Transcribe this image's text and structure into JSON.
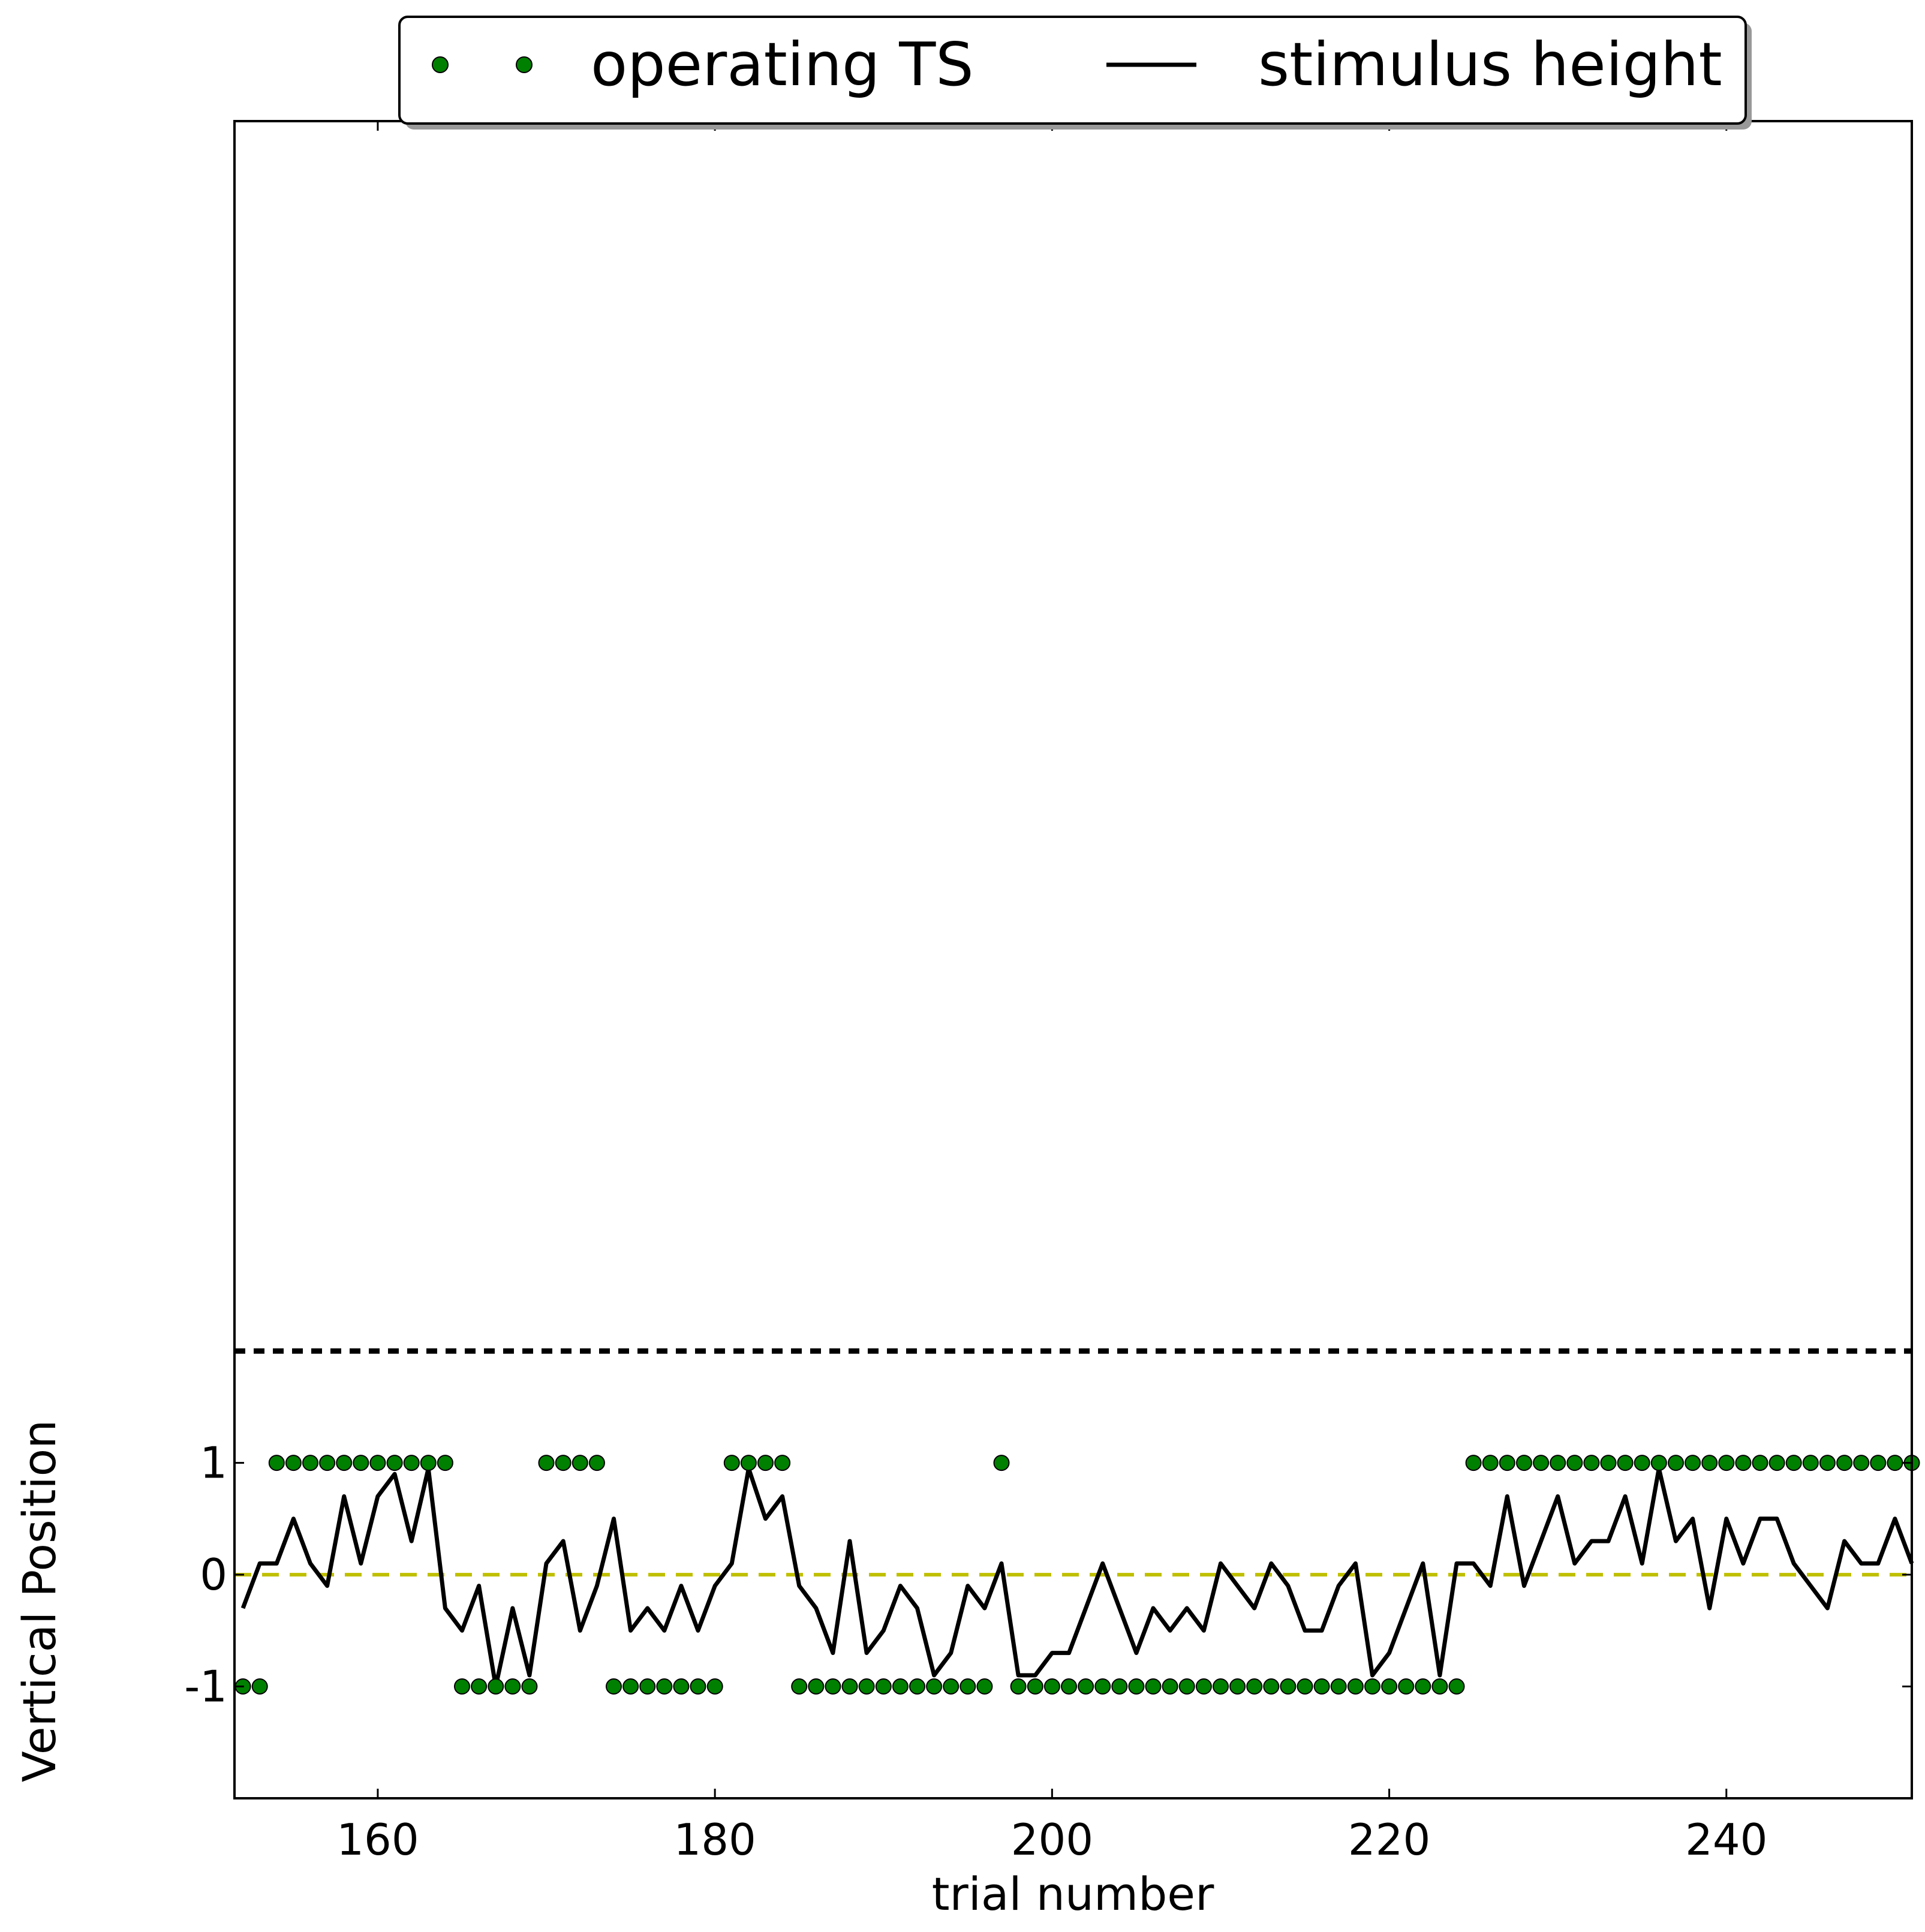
{
  "chart_data": {
    "type": "line",
    "xlabel": "trial number",
    "ylabel": "Vertical Position",
    "xlim": [
      151.5,
      251
    ],
    "ylim": [
      -2.0,
      13.0
    ],
    "xticks": [
      160,
      180,
      200,
      220,
      240
    ],
    "xtick_labels": [
      "160",
      "180",
      "200",
      "220",
      "240"
    ],
    "yticks": [
      1,
      0,
      -1
    ],
    "ytick_labels": [
      "1",
      "0",
      "-1"
    ],
    "legend": {
      "placement": "top-center (above plot)",
      "entries": [
        "operating TS",
        "stimulus height"
      ]
    },
    "reference_lines": [
      {
        "y": 2.0,
        "style": "dotted",
        "color": "#000000"
      },
      {
        "y": 0.0,
        "style": "dashed",
        "color": "#bfbf00"
      }
    ],
    "x": [
      152,
      153,
      154,
      155,
      156,
      157,
      158,
      159,
      160,
      161,
      162,
      163,
      164,
      165,
      166,
      167,
      168,
      169,
      170,
      171,
      172,
      173,
      174,
      175,
      176,
      177,
      178,
      179,
      180,
      181,
      182,
      183,
      184,
      185,
      186,
      187,
      188,
      189,
      190,
      191,
      192,
      193,
      194,
      195,
      196,
      197,
      198,
      199,
      200,
      201,
      202,
      203,
      204,
      205,
      206,
      207,
      208,
      209,
      210,
      211,
      212,
      213,
      214,
      215,
      216,
      217,
      218,
      219,
      220,
      221,
      222,
      223,
      224,
      225,
      226,
      227,
      228,
      229,
      230,
      231,
      232,
      233,
      234,
      235,
      236,
      237,
      238,
      239,
      240,
      241,
      242,
      243,
      244,
      245,
      246,
      247,
      248,
      249,
      250,
      251
    ],
    "series": [
      {
        "name": "operating TS",
        "marker": "circle",
        "color": "#008000",
        "values": [
          -1,
          -1,
          1,
          1,
          1,
          1,
          1,
          1,
          1,
          1,
          1,
          1,
          1,
          -1,
          -1,
          -1,
          -1,
          -1,
          1,
          1,
          1,
          1,
          -1,
          -1,
          -1,
          -1,
          -1,
          -1,
          -1,
          1,
          1,
          1,
          1,
          -1,
          -1,
          -1,
          -1,
          -1,
          -1,
          -1,
          -1,
          -1,
          -1,
          -1,
          -1,
          1,
          -1,
          -1,
          -1,
          -1,
          -1,
          -1,
          -1,
          -1,
          -1,
          -1,
          -1,
          -1,
          -1,
          -1,
          -1,
          -1,
          -1,
          -1,
          -1,
          -1,
          -1,
          -1,
          -1,
          -1,
          -1,
          -1,
          -1,
          1,
          1,
          1,
          1,
          1,
          1,
          1,
          1,
          1,
          1,
          1,
          1,
          1,
          1,
          1,
          1,
          1,
          1,
          1,
          1,
          1,
          1,
          1,
          1,
          1,
          1,
          1
        ]
      },
      {
        "name": "stimulus height",
        "marker": "line",
        "color": "#000000",
        "values": [
          -0.3,
          0.1,
          0.1,
          0.5,
          0.1,
          -0.1,
          0.7,
          0.1,
          0.7,
          0.9,
          0.3,
          0.95,
          -0.3,
          -0.5,
          -0.1,
          -1.0,
          -0.3,
          -0.9,
          0.1,
          0.3,
          -0.5,
          -0.1,
          0.5,
          -0.5,
          -0.3,
          -0.5,
          -0.1,
          -0.5,
          -0.1,
          0.1,
          0.95,
          0.5,
          0.7,
          -0.1,
          -0.3,
          -0.7,
          0.3,
          -0.7,
          -0.5,
          -0.1,
          -0.3,
          -0.9,
          -0.7,
          -0.1,
          -0.3,
          0.1,
          -0.9,
          -0.9,
          -0.7,
          -0.7,
          -0.3,
          0.1,
          -0.3,
          -0.7,
          -0.3,
          -0.5,
          -0.3,
          -0.5,
          0.1,
          -0.1,
          -0.3,
          0.1,
          -0.1,
          -0.5,
          -0.5,
          -0.1,
          0.1,
          -0.9,
          -0.7,
          -0.3,
          0.1,
          -0.9,
          0.1,
          0.1,
          -0.1,
          0.7,
          -0.1,
          0.3,
          0.7,
          0.1,
          0.3,
          0.3,
          0.7,
          0.1,
          0.95,
          0.3,
          0.5,
          -0.3,
          0.5,
          0.1,
          0.5,
          0.5,
          0.1,
          -0.1,
          -0.3,
          0.3,
          0.1,
          0.1,
          0.5,
          0.1
        ]
      }
    ]
  }
}
